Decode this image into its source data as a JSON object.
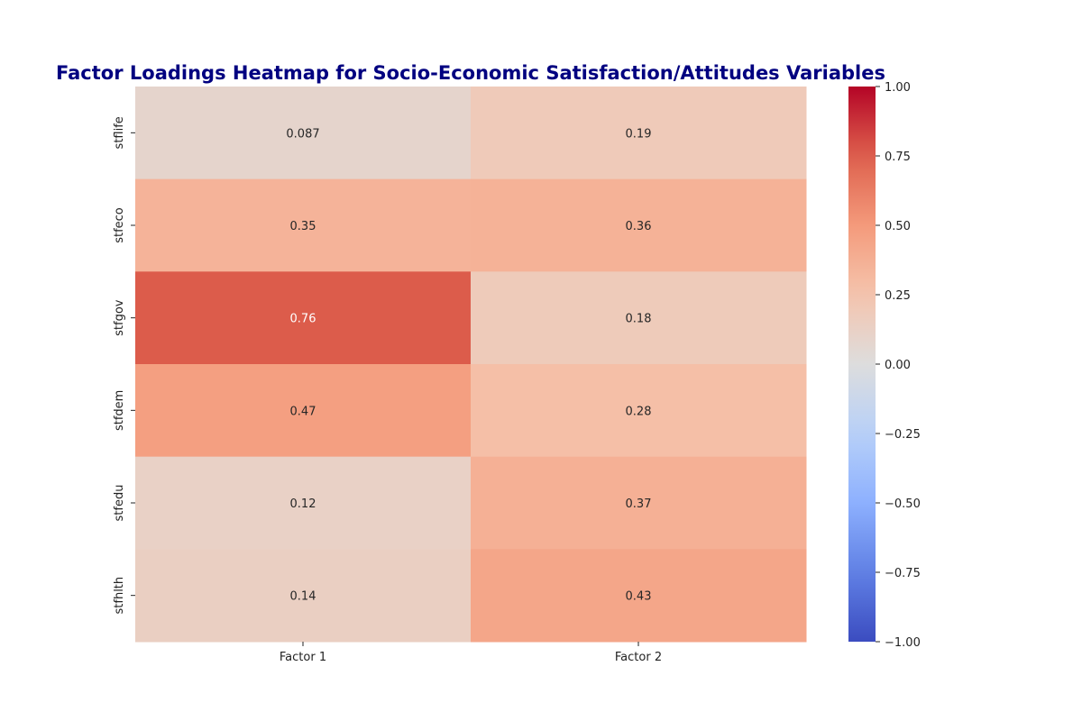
{
  "chart_data": {
    "type": "heatmap",
    "title": "Factor Loadings Heatmap for Socio-Economic Satisfaction/Attitudes Variables",
    "title_color": "#000080",
    "columns": [
      "Factor 1",
      "Factor 2"
    ],
    "rows": [
      "stflife",
      "stfeco",
      "stfgov",
      "stfdem",
      "stfedu",
      "stfhlth"
    ],
    "values": [
      [
        0.087,
        0.19
      ],
      [
        0.35,
        0.36
      ],
      [
        0.76,
        0.18
      ],
      [
        0.47,
        0.28
      ],
      [
        0.12,
        0.37
      ],
      [
        0.14,
        0.43
      ]
    ],
    "value_labels": [
      [
        "0.087",
        "0.19"
      ],
      [
        "0.35",
        "0.36"
      ],
      [
        "0.76",
        "0.18"
      ],
      [
        "0.47",
        "0.28"
      ],
      [
        "0.12",
        "0.37"
      ],
      [
        "0.14",
        "0.43"
      ]
    ],
    "colormap": "coolwarm",
    "color_range": [
      -1.0,
      1.0
    ],
    "colorbar_ticks": [
      "1.00",
      "0.75",
      "0.50",
      "0.25",
      "0.00",
      "−0.25",
      "−0.50",
      "−0.75",
      "−1.00"
    ],
    "colorbar_tick_values": [
      1.0,
      0.75,
      0.5,
      0.25,
      0.0,
      -0.25,
      -0.5,
      -0.75,
      -1.0
    ],
    "annotated": true
  }
}
